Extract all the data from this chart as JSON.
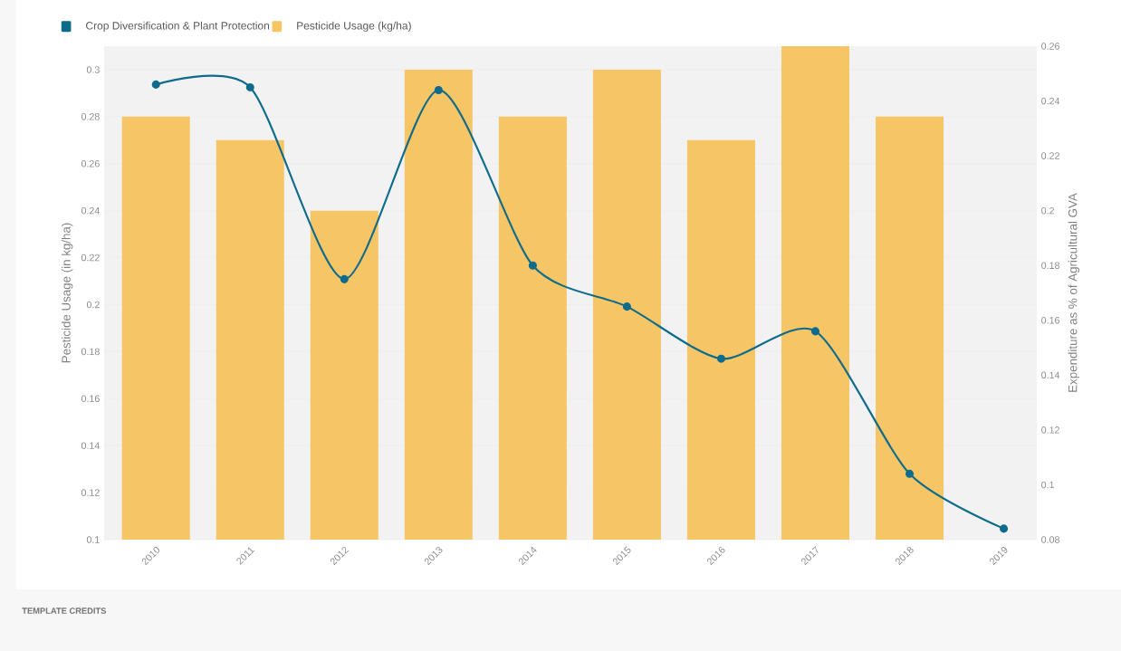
{
  "chart_data": {
    "type": "bar",
    "categories": [
      "2010",
      "2011",
      "2012",
      "2013",
      "2014",
      "2015",
      "2016",
      "2017",
      "2018",
      "2019"
    ],
    "series": [
      {
        "name": "Crop Diversification & Plant Protection",
        "type": "line",
        "axis": "y2",
        "color": "#0e6b8c",
        "marker": "circle",
        "values": [
          0.246,
          0.245,
          0.175,
          0.244,
          0.18,
          0.165,
          0.146,
          0.156,
          0.104,
          0.084
        ]
      },
      {
        "name": "Pesticide Usage (kg/ha)",
        "color": "#f6c565",
        "values": [
          0.28,
          0.27,
          0.24,
          0.3,
          0.28,
          0.3,
          0.27,
          0.31,
          0.28,
          null
        ]
      }
    ],
    "ylabel": "Pesticide Usage (in kg/ha)",
    "y2label": "Expenditure as % of Agricultural GVA",
    "ylim": [
      0.1,
      0.31
    ],
    "yticks": [
      0.1,
      0.12,
      0.14,
      0.16,
      0.18,
      0.2,
      0.22,
      0.24,
      0.26,
      0.28,
      0.3
    ],
    "y2lim": [
      0.08,
      0.26
    ],
    "y2ticks": [
      0.08,
      0.1,
      0.12,
      0.14,
      0.16,
      0.18,
      0.2,
      0.22,
      0.24,
      0.26
    ],
    "grid": "y",
    "legend": "top left",
    "annotations": [
      "TEMPLATE CREDITS"
    ]
  }
}
